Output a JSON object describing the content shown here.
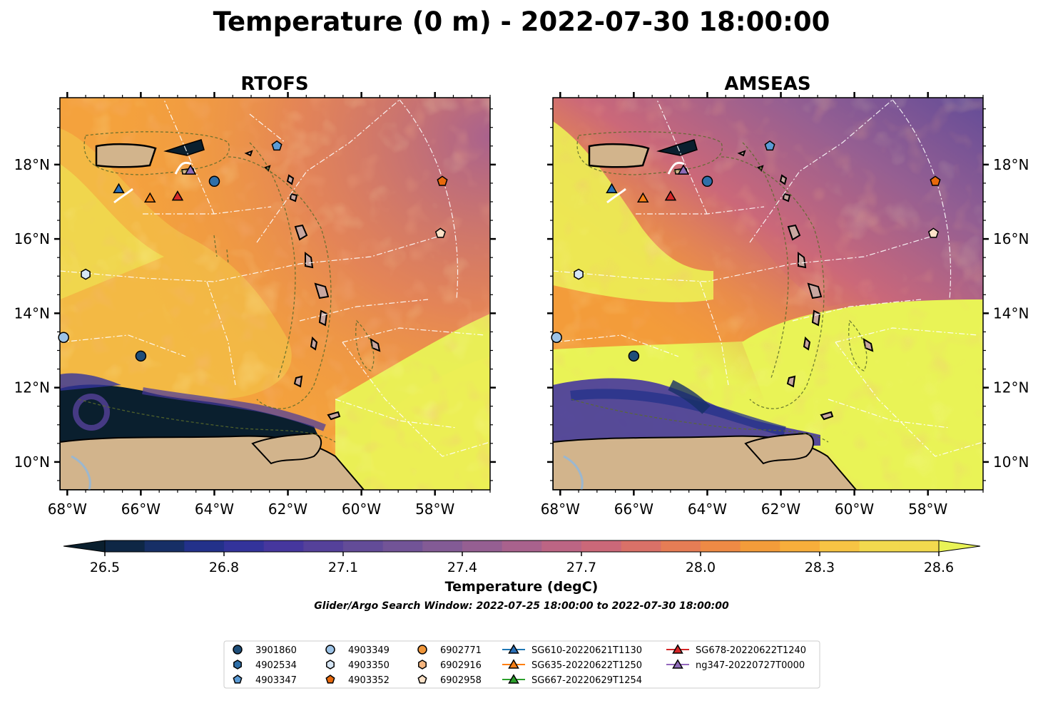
{
  "figure": {
    "title": "Temperature (0 m) - 2022-07-30 18:00:00",
    "subtitle": "Glider/Argo Search Window: 2022-07-25 18:00:00 to 2022-07-30 18:00:00"
  },
  "chart_data": {
    "type": "heatmap",
    "title": "Temperature (0 m) - 2022-07-30 18:00:00",
    "variable": "Temperature (0 m)",
    "panels": [
      {
        "title": "RTOFS",
        "lat_ticks": [
          "18°N",
          "16°N",
          "14°N",
          "12°N",
          "10°N"
        ],
        "lat_tick_values": [
          18,
          16,
          14,
          12,
          10
        ],
        "lon_ticks": [
          "68°W",
          "66°W",
          "64°W",
          "62°W",
          "60°W",
          "58°W"
        ],
        "lon_tick_values": [
          -68,
          -66,
          -64,
          -62,
          -60,
          -58
        ],
        "lat_label_side": "left"
      },
      {
        "title": "AMSEAS",
        "lat_ticks": [
          "18°N",
          "16°N",
          "14°N",
          "12°N",
          "10°N"
        ],
        "lat_tick_values": [
          18,
          16,
          14,
          12,
          10
        ],
        "lon_ticks": [
          "68°W",
          "66°W",
          "64°W",
          "62°W",
          "60°W",
          "58°W"
        ],
        "lon_tick_values": [
          -68,
          -66,
          -64,
          -62,
          -60,
          -58
        ],
        "lat_label_side": "right"
      }
    ],
    "lon_range": [
      -68.2,
      -56.5
    ],
    "lat_range": [
      9.25,
      19.8
    ],
    "colorbar": {
      "label": "Temperature (degC)",
      "range": [
        26.5,
        28.6
      ],
      "step": 0.1,
      "tick_labels": [
        "26.5",
        "26.8",
        "27.1",
        "27.4",
        "27.7",
        "28.0",
        "28.3",
        "28.6"
      ],
      "tick_values": [
        26.5,
        26.8,
        27.1,
        27.4,
        27.7,
        28.0,
        28.3,
        28.6
      ],
      "extend": "both",
      "colors": [
        "#0a1f2e",
        "#0e2745",
        "#172f66",
        "#23318a",
        "#33339b",
        "#46379e",
        "#55419a",
        "#634c98",
        "#725497",
        "#835b95",
        "#955f92",
        "#a9628d",
        "#bc6584",
        "#cb6879",
        "#d97168",
        "#e67d55",
        "#ee8a45",
        "#f39c3a",
        "#f7ae3b",
        "#f7c444",
        "#f2d94e",
        "#e9f356"
      ]
    },
    "contours": {
      "label": "-1000",
      "style": "dashed"
    },
    "legend": {
      "placement": "bottom-center",
      "entries": [
        {
          "label": "3901860",
          "marker": "circle",
          "color": "#1f4e79",
          "lon": -66.0,
          "lat": 12.85
        },
        {
          "label": "4902534",
          "marker": "hexagon",
          "color": "#2f6fa8",
          "lon": null,
          "lat": null
        },
        {
          "label": "4903347",
          "marker": "pentagon",
          "color": "#5b9bd5",
          "lon": -62.3,
          "lat": 18.5
        },
        {
          "label": "4903349",
          "marker": "circle",
          "color": "#9dc3e6",
          "lon": -68.1,
          "lat": 13.35
        },
        {
          "label": "4903350",
          "marker": "hexagon",
          "color": "#d6e6f5",
          "lon": -67.5,
          "lat": 15.05
        },
        {
          "label": "4903352",
          "marker": "pentagon",
          "color": "#e8690c",
          "lon": -57.8,
          "lat": 17.55
        },
        {
          "label": "6902771",
          "marker": "circle",
          "color": "#f0963a",
          "lon": null,
          "lat": null
        },
        {
          "label": "6902916",
          "marker": "hexagon",
          "color": "#f5b57e",
          "lon": null,
          "lat": null
        },
        {
          "label": "6902958",
          "marker": "pentagon",
          "color": "#fce2c8",
          "lon": -57.85,
          "lat": 16.15
        },
        {
          "label": "SG610-20220621T1130",
          "marker": "triangle",
          "color": "#2a70b8",
          "line": "#1f77b4",
          "lon": -66.6,
          "lat": 17.35
        },
        {
          "label": "SG635-20220622T1250",
          "marker": "triangle",
          "color": "#f57f17",
          "line": "#ff7f0e",
          "lon": -65.75,
          "lat": 17.1
        },
        {
          "label": "SG667-20220629T1254",
          "marker": "triangle",
          "color": "#2ca02c",
          "line": "#2ca02c",
          "lon": null,
          "lat": null
        },
        {
          "label": "SG678-20220622T1240",
          "marker": "triangle",
          "color": "#d62728",
          "line": "#d62728",
          "lon": -65.0,
          "lat": 17.15
        },
        {
          "label": "ng347-20220727T0000",
          "marker": "triangle",
          "color": "#8e6cb8",
          "line": "#9467bd",
          "lon": -64.65,
          "lat": 17.85
        }
      ]
    },
    "extra_markers": [
      {
        "marker": "circle",
        "color": "#2f6fa8",
        "lon": -64.0,
        "lat": 17.55
      }
    ]
  },
  "icons": {
    "land": "#d2b48c",
    "river": "#9bb7cf"
  }
}
